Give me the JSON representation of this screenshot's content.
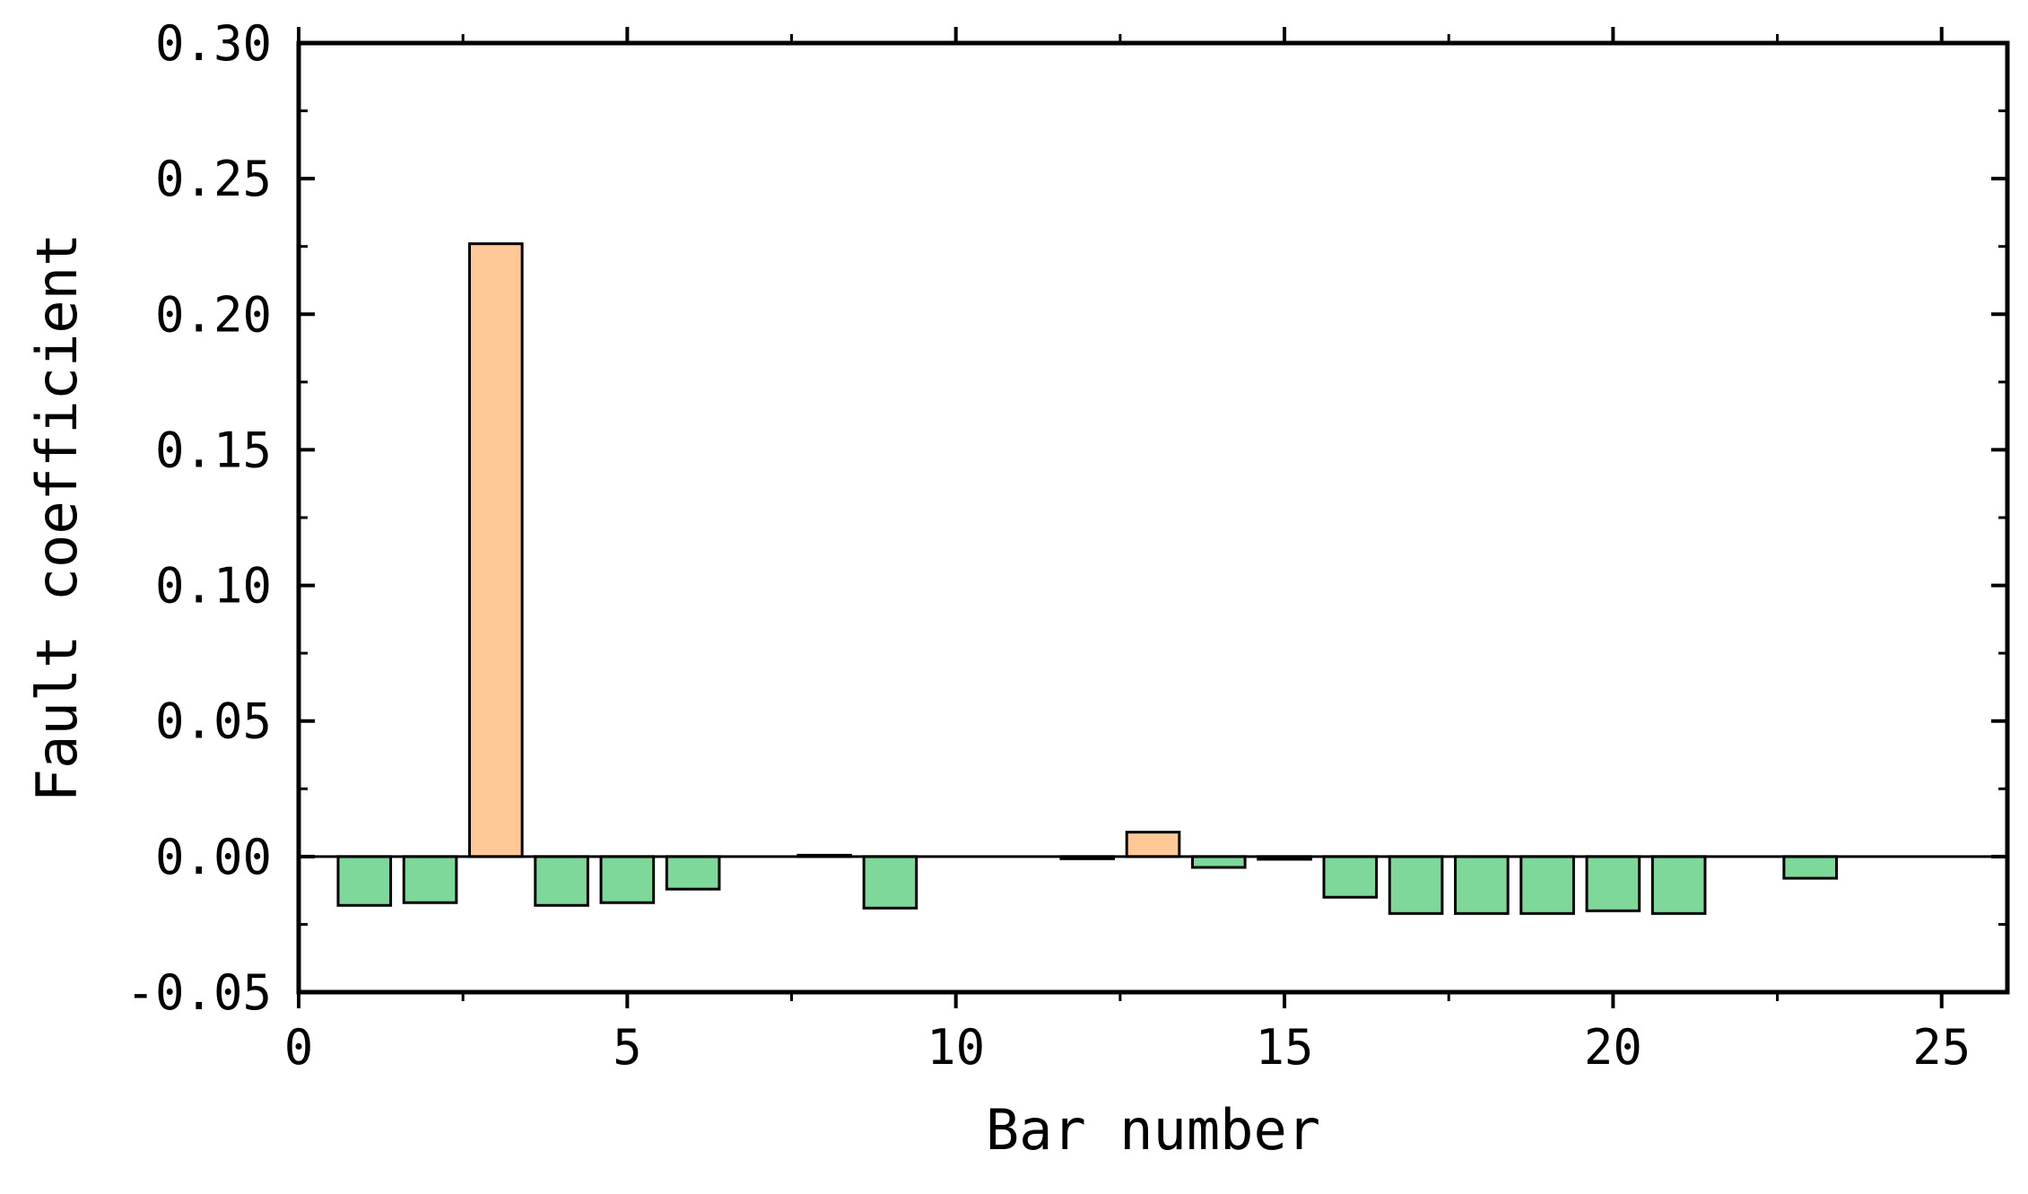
{
  "chart_data": {
    "type": "bar",
    "title": "",
    "xlabel": "Bar number",
    "ylabel": "Fault coefficient",
    "xlim": [
      0,
      26
    ],
    "ylim": [
      -0.05,
      0.3
    ],
    "xticks": [
      0,
      5,
      10,
      15,
      20,
      25
    ],
    "xtick_labels": [
      "0",
      "5",
      "10",
      "15",
      "20",
      "25"
    ],
    "yticks": [
      -0.05,
      0.0,
      0.05,
      0.1,
      0.15,
      0.2,
      0.25,
      0.3
    ],
    "ytick_labels": [
      "-0.05",
      "0.00",
      "0.05",
      "0.10",
      "0.15",
      "0.20",
      "0.25",
      "0.30"
    ],
    "grid": false,
    "bar_width": 0.8,
    "colors": {
      "positive": "#ffc896",
      "negative": "#7dd89a",
      "edge": "#000000"
    },
    "x": [
      1,
      2,
      3,
      4,
      5,
      6,
      7,
      8,
      9,
      10,
      11,
      12,
      13,
      14,
      15,
      16,
      17,
      18,
      19,
      20,
      21,
      22,
      23,
      24,
      25
    ],
    "values": [
      -0.018,
      -0.017,
      0.226,
      -0.018,
      -0.017,
      -0.012,
      0.0,
      0.0005,
      -0.019,
      0.0,
      0.0,
      -0.0008,
      0.009,
      -0.004,
      -0.001,
      -0.015,
      -0.021,
      -0.021,
      -0.021,
      -0.02,
      -0.021,
      0.0,
      -0.008,
      0.0,
      0.0
    ]
  }
}
